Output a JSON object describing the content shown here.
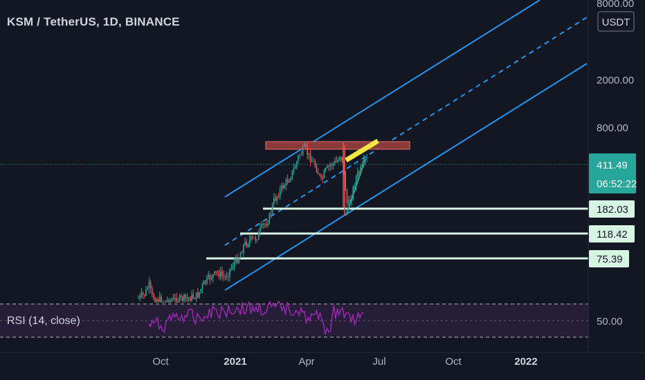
{
  "header": {
    "symbol_title": "KSM / TetherUS, 1D, BINANCE"
  },
  "price_axis": {
    "currency_badge": "USDT",
    "labels": [
      "8000.00",
      "2000.00",
      "800.00"
    ],
    "rsi_label": "50.00"
  },
  "last_price": {
    "value": "411.49",
    "countdown": "06:52:22",
    "color": "#26a69a"
  },
  "levels": [
    {
      "value": "182.03"
    },
    {
      "value": "118.42"
    },
    {
      "value": "75.39"
    }
  ],
  "time_axis": {
    "labels": [
      {
        "text": "Oct",
        "bold": false
      },
      {
        "text": "2021",
        "bold": true
      },
      {
        "text": "Apr",
        "bold": false
      },
      {
        "text": "Jul",
        "bold": false
      },
      {
        "text": "Oct",
        "bold": false
      },
      {
        "text": "2022",
        "bold": true
      }
    ]
  },
  "indicator": {
    "name": "RSI (14, close)",
    "color": "#9c27b0"
  },
  "colors": {
    "channel": "#2196f3",
    "level_fill": "#d7f5e3",
    "resistance_box": "#8b3a3a",
    "highlight": "#f5e642",
    "candle_up": "#26a69a",
    "candle_down": "#ef5350"
  }
}
